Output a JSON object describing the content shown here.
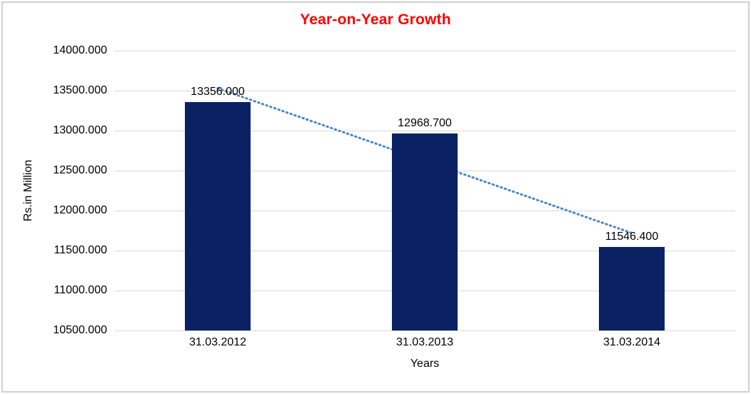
{
  "chart_data": {
    "type": "bar",
    "title": "Year-on-Year Growth",
    "title_color": "#ff0000",
    "categories": [
      "31.03.2012",
      "31.03.2013",
      "31.03.2014"
    ],
    "values": [
      13356.0,
      12968.7,
      11546.4
    ],
    "data_labels": [
      "13356.000",
      "12968.700",
      "11546.400"
    ],
    "xlabel": "Years",
    "ylabel": "Rs.in Million",
    "ylim": [
      10500,
      14000
    ],
    "y_ticks": [
      10500,
      11000,
      11500,
      12000,
      12500,
      13000,
      13500,
      14000
    ],
    "y_tick_labels": [
      "10500.000",
      "11000.000",
      "11500.000",
      "12000.000",
      "12500.000",
      "13000.000",
      "13500.000",
      "14000.000"
    ],
    "grid": true,
    "legend": "none",
    "bar_color": "#0a2264",
    "gridline_color": "#d9d9d9",
    "text_color": "#000000",
    "trendline": {
      "type": "linear",
      "style": "dotted",
      "color": "#4a86c8",
      "y_start": 13529,
      "y_end": 11719
    }
  }
}
